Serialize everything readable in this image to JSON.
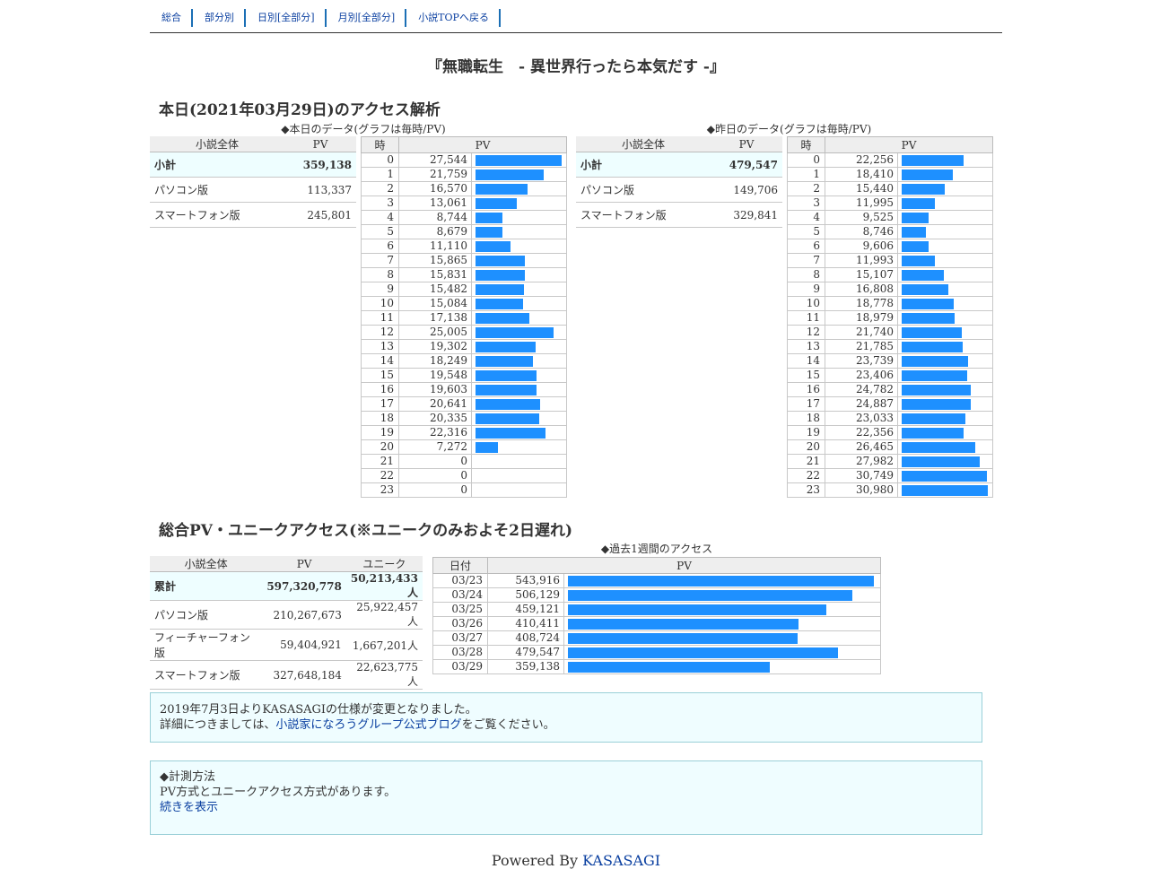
{
  "nav": [
    "総合",
    "部分別",
    "日別[全部分]",
    "月別[全部分]",
    "小説TOPへ戻る"
  ],
  "novel_title": "『無職転生　- 異世界行ったら本気だす -』",
  "today": {
    "heading": "本日(2021年03月29日)のアクセス解析",
    "caption": "◆本日のデータ(グラフは毎時/PV)",
    "summary": {
      "headers": [
        "小説全体",
        "PV"
      ],
      "rows": [
        {
          "label": "小計",
          "value": "359,138"
        },
        {
          "label": "パソコン版",
          "value": "113,337"
        },
        {
          "label": "スマートフォン版",
          "value": "245,801"
        }
      ]
    },
    "hourly": {
      "headers": [
        "時",
        "PV"
      ],
      "rows": [
        {
          "h": "0",
          "pv": "27,544",
          "v": 27544
        },
        {
          "h": "1",
          "pv": "21,759",
          "v": 21759
        },
        {
          "h": "2",
          "pv": "16,570",
          "v": 16570
        },
        {
          "h": "3",
          "pv": "13,061",
          "v": 13061
        },
        {
          "h": "4",
          "pv": "8,744",
          "v": 8744
        },
        {
          "h": "5",
          "pv": "8,679",
          "v": 8679
        },
        {
          "h": "6",
          "pv": "11,110",
          "v": 11110
        },
        {
          "h": "7",
          "pv": "15,865",
          "v": 15865
        },
        {
          "h": "8",
          "pv": "15,831",
          "v": 15831
        },
        {
          "h": "9",
          "pv": "15,482",
          "v": 15482
        },
        {
          "h": "10",
          "pv": "15,084",
          "v": 15084
        },
        {
          "h": "11",
          "pv": "17,138",
          "v": 17138
        },
        {
          "h": "12",
          "pv": "25,005",
          "v": 25005
        },
        {
          "h": "13",
          "pv": "19,302",
          "v": 19302
        },
        {
          "h": "14",
          "pv": "18,249",
          "v": 18249
        },
        {
          "h": "15",
          "pv": "19,548",
          "v": 19548
        },
        {
          "h": "16",
          "pv": "19,603",
          "v": 19603
        },
        {
          "h": "17",
          "pv": "20,641",
          "v": 20641
        },
        {
          "h": "18",
          "pv": "20,335",
          "v": 20335
        },
        {
          "h": "19",
          "pv": "22,316",
          "v": 22316
        },
        {
          "h": "20",
          "pv": "7,272",
          "v": 7272
        },
        {
          "h": "21",
          "pv": "0",
          "v": 0
        },
        {
          "h": "22",
          "pv": "0",
          "v": 0
        },
        {
          "h": "23",
          "pv": "0",
          "v": 0
        }
      ]
    }
  },
  "yesterday": {
    "caption": "◆昨日のデータ(グラフは毎時/PV)",
    "summary": {
      "headers": [
        "小説全体",
        "PV"
      ],
      "rows": [
        {
          "label": "小計",
          "value": "479,547"
        },
        {
          "label": "パソコン版",
          "value": "149,706"
        },
        {
          "label": "スマートフォン版",
          "value": "329,841"
        }
      ]
    },
    "hourly": {
      "headers": [
        "時",
        "PV"
      ],
      "rows": [
        {
          "h": "0",
          "pv": "22,256",
          "v": 22256
        },
        {
          "h": "1",
          "pv": "18,410",
          "v": 18410
        },
        {
          "h": "2",
          "pv": "15,440",
          "v": 15440
        },
        {
          "h": "3",
          "pv": "11,995",
          "v": 11995
        },
        {
          "h": "4",
          "pv": "9,525",
          "v": 9525
        },
        {
          "h": "5",
          "pv": "8,746",
          "v": 8746
        },
        {
          "h": "6",
          "pv": "9,606",
          "v": 9606
        },
        {
          "h": "7",
          "pv": "11,993",
          "v": 11993
        },
        {
          "h": "8",
          "pv": "15,107",
          "v": 15107
        },
        {
          "h": "9",
          "pv": "16,808",
          "v": 16808
        },
        {
          "h": "10",
          "pv": "18,778",
          "v": 18778
        },
        {
          "h": "11",
          "pv": "18,979",
          "v": 18979
        },
        {
          "h": "12",
          "pv": "21,740",
          "v": 21740
        },
        {
          "h": "13",
          "pv": "21,785",
          "v": 21785
        },
        {
          "h": "14",
          "pv": "23,739",
          "v": 23739
        },
        {
          "h": "15",
          "pv": "23,406",
          "v": 23406
        },
        {
          "h": "16",
          "pv": "24,782",
          "v": 24782
        },
        {
          "h": "17",
          "pv": "24,887",
          "v": 24887
        },
        {
          "h": "18",
          "pv": "23,033",
          "v": 23033
        },
        {
          "h": "19",
          "pv": "22,356",
          "v": 22356
        },
        {
          "h": "20",
          "pv": "26,465",
          "v": 26465
        },
        {
          "h": "21",
          "pv": "27,982",
          "v": 27982
        },
        {
          "h": "22",
          "pv": "30,749",
          "v": 30749
        },
        {
          "h": "23",
          "pv": "30,980",
          "v": 30980
        }
      ]
    }
  },
  "total": {
    "heading": "総合PV・ユニークアクセス(※ユニークのみおよそ2日遅れ)",
    "summary": {
      "headers": [
        "小説全体",
        "PV",
        "ユニーク"
      ],
      "rows": [
        {
          "label": "累計",
          "pv": "597,320,778",
          "unique": "50,213,433人"
        },
        {
          "label": "パソコン版",
          "pv": "210,267,673",
          "unique": "25,922,457人"
        },
        {
          "label": "フィーチャーフォン版",
          "pv": "59,404,921",
          "unique": "1,667,201人"
        },
        {
          "label": "スマートフォン版",
          "pv": "327,648,184",
          "unique": "22,623,775人"
        }
      ]
    },
    "weekly": {
      "caption": "◆過去1週間のアクセス",
      "headers": [
        "日付",
        "PV"
      ],
      "rows": [
        {
          "d": "03/23",
          "pv": "543,916",
          "v": 543916
        },
        {
          "d": "03/24",
          "pv": "506,129",
          "v": 506129
        },
        {
          "d": "03/25",
          "pv": "459,121",
          "v": 459121
        },
        {
          "d": "03/26",
          "pv": "410,411",
          "v": 410411
        },
        {
          "d": "03/27",
          "pv": "408,724",
          "v": 408724
        },
        {
          "d": "03/28",
          "pv": "479,547",
          "v": 479547
        },
        {
          "d": "03/29",
          "pv": "359,138",
          "v": 359138
        }
      ]
    }
  },
  "notice1": {
    "line1": "2019年7月3日よりKASASAGIの仕様が変更となりました。",
    "line2_pre": "詳細につきましては、",
    "line2_link": "小説家になろうグループ公式ブログ",
    "line2_post": "をご覧ください。"
  },
  "notice2": {
    "line1": "◆計測方法",
    "line2": "PV方式とユニークアクセス方式があります。",
    "link": "続きを表示"
  },
  "footer": {
    "prefix": "Powered By ",
    "link": "KASASAGI"
  },
  "colors": {
    "bar": "#1e90ff",
    "nav_divider": "#1b6fb5",
    "link": "#0a3fa0",
    "notice_bg": "#effdff"
  }
}
